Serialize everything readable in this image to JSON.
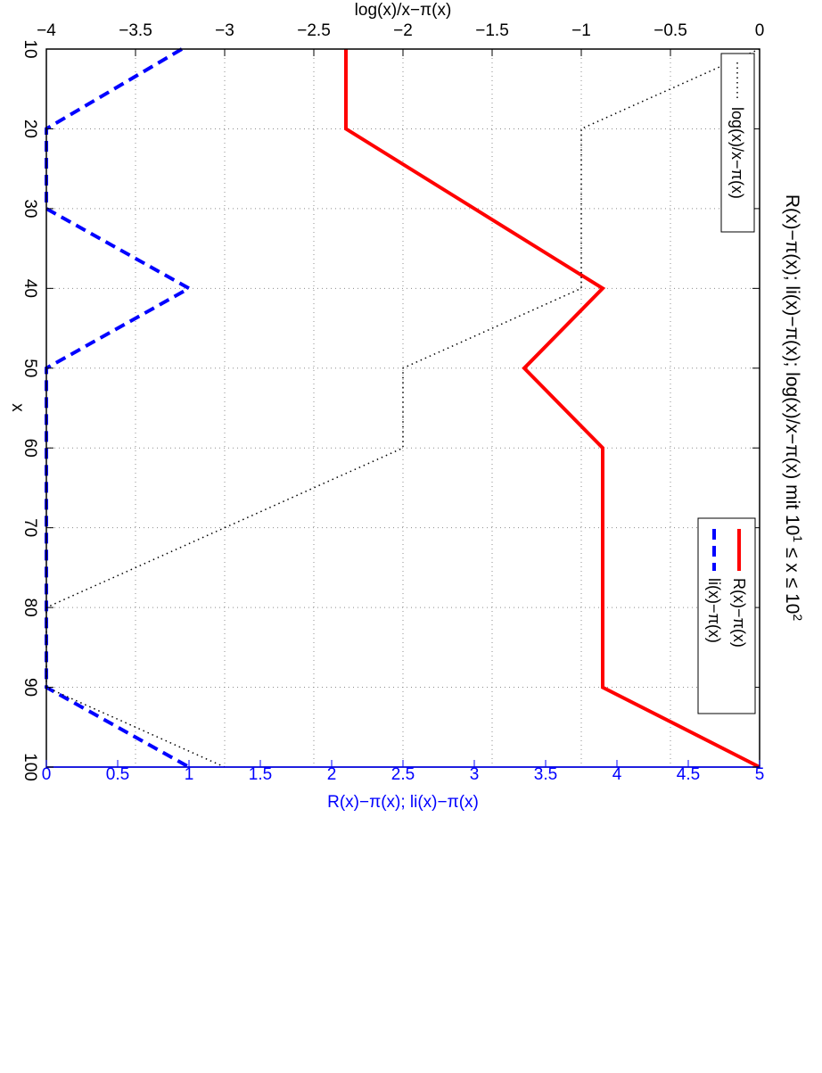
{
  "chart_data": {
    "type": "line",
    "orientation": "rotated-90-clockwise",
    "title": "R(x)−π(x); li(x)−π(x); log(x)/x−π(x) mit 10",
    "title_sup1": "1",
    "title_mid": " ≤ x ≤ 10",
    "title_sup2": "2",
    "xlabel": "x",
    "ylabel_left": "log(x)/x−π(x)",
    "ylabel_right": "R(x)−π(x); li(x)−π(x)",
    "xlim": [
      10,
      100
    ],
    "ylim_left": [
      -4,
      0
    ],
    "ylim_right": [
      0,
      5
    ],
    "grid": true,
    "x_ticks": [
      "10",
      "20",
      "30",
      "40",
      "50",
      "60",
      "70",
      "80",
      "90",
      "100"
    ],
    "y_left_ticks": [
      "0",
      "−0.5",
      "−1",
      "−1.5",
      "−2",
      "−2.5",
      "−3",
      "−3.5",
      "−4"
    ],
    "y_right_ticks": [
      "0",
      "0.5",
      "1",
      "1.5",
      "2",
      "2.5",
      "3",
      "3.5",
      "4",
      "4.5",
      "5"
    ],
    "series": [
      {
        "name": "R(x)−π(x)",
        "axis": "right",
        "color": "#ff0000",
        "style": "solid",
        "x": [
          10,
          20,
          40,
          50,
          60,
          90,
          100
        ],
        "y": [
          2.1,
          2.1,
          3.9,
          3.35,
          3.9,
          3.9,
          5.0
        ]
      },
      {
        "name": "li(x)−π(x)",
        "axis": "right",
        "color": "#0000ff",
        "style": "dashed",
        "x": [
          10,
          20,
          30,
          40,
          50,
          90,
          100
        ],
        "y": [
          0.95,
          0,
          0,
          1.0,
          0,
          0,
          1.0
        ]
      },
      {
        "name": "log(x)/x−π(x)",
        "axis": "left",
        "color": "#000000",
        "style": "dotted",
        "x": [
          10,
          20,
          40,
          50,
          60,
          80,
          90,
          100
        ],
        "y": [
          0,
          -1,
          -1,
          -2,
          -2,
          -4,
          -4,
          -3
        ]
      }
    ],
    "legend_right_placement": "upper-right",
    "legend_left_placement": "upper-left"
  }
}
